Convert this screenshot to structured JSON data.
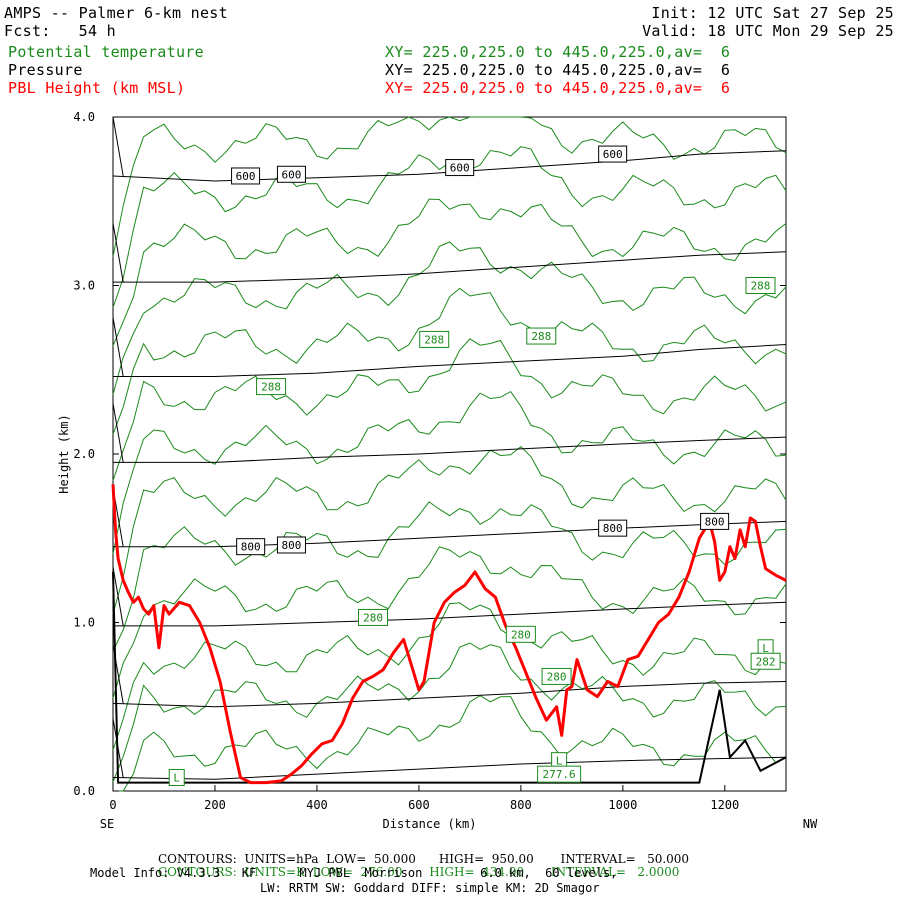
{
  "header": {
    "title": "AMPS -- Palmer 6-km nest",
    "init": "Init: 12 UTC Sat 27 Sep 25",
    "fcst": "Fcst:   54 h",
    "valid": "Valid: 18 UTC Mon 29 Sep 25",
    "fields": [
      {
        "name": "Potential temperature",
        "xy": "XY= 225.0,225.0 to 445.0,225.0,av=  6",
        "color": "#1a8a1a"
      },
      {
        "name": "Pressure",
        "xy": "XY= 225.0,225.0 to 445.0,225.0,av=  6",
        "color": "#000000"
      },
      {
        "name": "PBL Height (km MSL)",
        "xy": "XY= 225.0,225.0 to 445.0,225.0,av=  6",
        "color": "#ff0000"
      }
    ]
  },
  "footer": {
    "pressure_contours": {
      "label": "CONTOURS:",
      "units": "UNITS=hPa",
      "low": "LOW=  50.000",
      "high": "HIGH=  950.00",
      "interval": "INTERVAL=   50.000"
    },
    "theta_contours": {
      "label": "CONTOURS:",
      "units": "UNITS=K",
      "low": "LOW=  276.00",
      "high": "HIGH=  434.00",
      "interval": "INTERVAL=   2.0000"
    },
    "model_line1": "Model Info: V4.3.3   KF      MYJ PBL  Morrison        6.0 km,  60 levels,",
    "model_line2": "LW: RRTM SW: Goddard DIFF: simple KM: 2D Smagor"
  },
  "chart_data": {
    "type": "line",
    "xlabel": "Distance (km)",
    "ylabel": "Height (km)",
    "xlim": [
      0,
      1320
    ],
    "ylim": [
      0,
      4
    ],
    "x_ticks": [
      0,
      200,
      400,
      600,
      800,
      1000,
      1200
    ],
    "y_ticks": [
      "0.0",
      "1.0",
      "2.0",
      "3.0",
      "4.0"
    ],
    "x_end_labels": {
      "left": "SE",
      "right": "NW"
    },
    "series": [
      {
        "name": "PBL Height (km MSL)",
        "color": "#ff0000",
        "x": [
          0,
          5,
          10,
          20,
          30,
          40,
          50,
          60,
          70,
          80,
          90,
          100,
          110,
          130,
          150,
          170,
          190,
          210,
          230,
          250,
          270,
          300,
          330,
          350,
          370,
          390,
          410,
          430,
          450,
          470,
          490,
          510,
          530,
          550,
          570,
          590,
          600,
          610,
          630,
          650,
          670,
          690,
          710,
          730,
          750,
          770,
          790,
          810,
          830,
          850,
          870,
          880,
          890,
          900,
          910,
          930,
          950,
          970,
          990,
          1010,
          1030,
          1050,
          1070,
          1090,
          1110,
          1130,
          1150,
          1170,
          1180,
          1190,
          1200,
          1210,
          1220,
          1230,
          1240,
          1250,
          1260,
          1270,
          1280,
          1290,
          1300,
          1320
        ],
        "y": [
          1.82,
          1.55,
          1.38,
          1.25,
          1.18,
          1.12,
          1.15,
          1.08,
          1.05,
          1.1,
          0.85,
          1.1,
          1.05,
          1.12,
          1.1,
          1.0,
          0.85,
          0.65,
          0.35,
          0.08,
          0.05,
          0.05,
          0.06,
          0.1,
          0.15,
          0.22,
          0.28,
          0.3,
          0.4,
          0.55,
          0.65,
          0.68,
          0.72,
          0.82,
          0.9,
          0.7,
          0.6,
          0.65,
          1.0,
          1.12,
          1.18,
          1.22,
          1.3,
          1.2,
          1.15,
          0.98,
          0.85,
          0.7,
          0.55,
          0.42,
          0.5,
          0.33,
          0.6,
          0.62,
          0.78,
          0.6,
          0.56,
          0.65,
          0.62,
          0.78,
          0.8,
          0.9,
          1.0,
          1.05,
          1.15,
          1.3,
          1.5,
          1.6,
          1.48,
          1.25,
          1.3,
          1.45,
          1.38,
          1.55,
          1.45,
          1.62,
          1.6,
          1.45,
          1.32,
          1.3,
          1.28,
          1.25
        ]
      }
    ],
    "pressure_isobars_hPa": [
      {
        "value": 600,
        "label": "600",
        "y_km": [
          3.65,
          3.62,
          3.64,
          3.66,
          3.7,
          3.74,
          3.78,
          3.8
        ]
      },
      {
        "value": 650,
        "y_km": [
          3.02,
          3.02,
          3.04,
          3.07,
          3.11,
          3.15,
          3.18,
          3.2
        ]
      },
      {
        "value": 700,
        "y_km": [
          2.46,
          2.46,
          2.48,
          2.52,
          2.55,
          2.58,
          2.62,
          2.65
        ]
      },
      {
        "value": 750,
        "y_km": [
          1.95,
          1.95,
          1.98,
          2.0,
          2.03,
          2.06,
          2.08,
          2.1
        ]
      },
      {
        "value": 800,
        "label": "800",
        "y_km": [
          1.45,
          1.45,
          1.47,
          1.5,
          1.53,
          1.56,
          1.58,
          1.6
        ]
      },
      {
        "value": 850,
        "y_km": [
          0.98,
          0.98,
          1.0,
          1.02,
          1.05,
          1.08,
          1.1,
          1.12
        ]
      },
      {
        "value": 900,
        "y_km": [
          0.52,
          0.5,
          0.52,
          0.55,
          0.58,
          0.62,
          0.64,
          0.65
        ]
      },
      {
        "value": 950,
        "y_km": [
          0.08,
          0.07,
          0.1,
          0.13,
          0.16,
          0.18,
          0.19,
          0.2
        ]
      }
    ],
    "isobar_x_km": [
      0,
      200,
      400,
      600,
      800,
      1000,
      1150,
      1320
    ],
    "isobar_labels": [
      {
        "text": "600",
        "x": 260,
        "y": 3.65
      },
      {
        "text": "600",
        "x": 350,
        "y": 3.66
      },
      {
        "text": "600",
        "x": 680,
        "y": 3.7
      },
      {
        "text": "600",
        "x": 980,
        "y": 3.78
      },
      {
        "text": "800",
        "x": 270,
        "y": 1.45
      },
      {
        "text": "800",
        "x": 350,
        "y": 1.46
      },
      {
        "text": "800",
        "x": 980,
        "y": 1.56
      },
      {
        "text": "800",
        "x": 1180,
        "y": 1.6
      }
    ],
    "theta_labels": [
      {
        "text": "288",
        "x": 310,
        "y": 2.4
      },
      {
        "text": "288",
        "x": 630,
        "y": 2.68
      },
      {
        "text": "288",
        "x": 840,
        "y": 2.7
      },
      {
        "text": "288",
        "x": 1270,
        "y": 3.0
      },
      {
        "text": "280",
        "x": 510,
        "y": 1.03
      },
      {
        "text": "280",
        "x": 800,
        "y": 0.93
      },
      {
        "text": "280",
        "x": 870,
        "y": 0.68
      },
      {
        "text": "L",
        "x": 1280,
        "y": 0.85
      },
      {
        "text": "282",
        "x": 1280,
        "y": 0.77
      },
      {
        "text": "L",
        "x": 875,
        "y": 0.18
      },
      {
        "text": "277.6",
        "x": 875,
        "y": 0.1
      },
      {
        "text": "L",
        "x": 125,
        "y": 0.08
      }
    ]
  }
}
